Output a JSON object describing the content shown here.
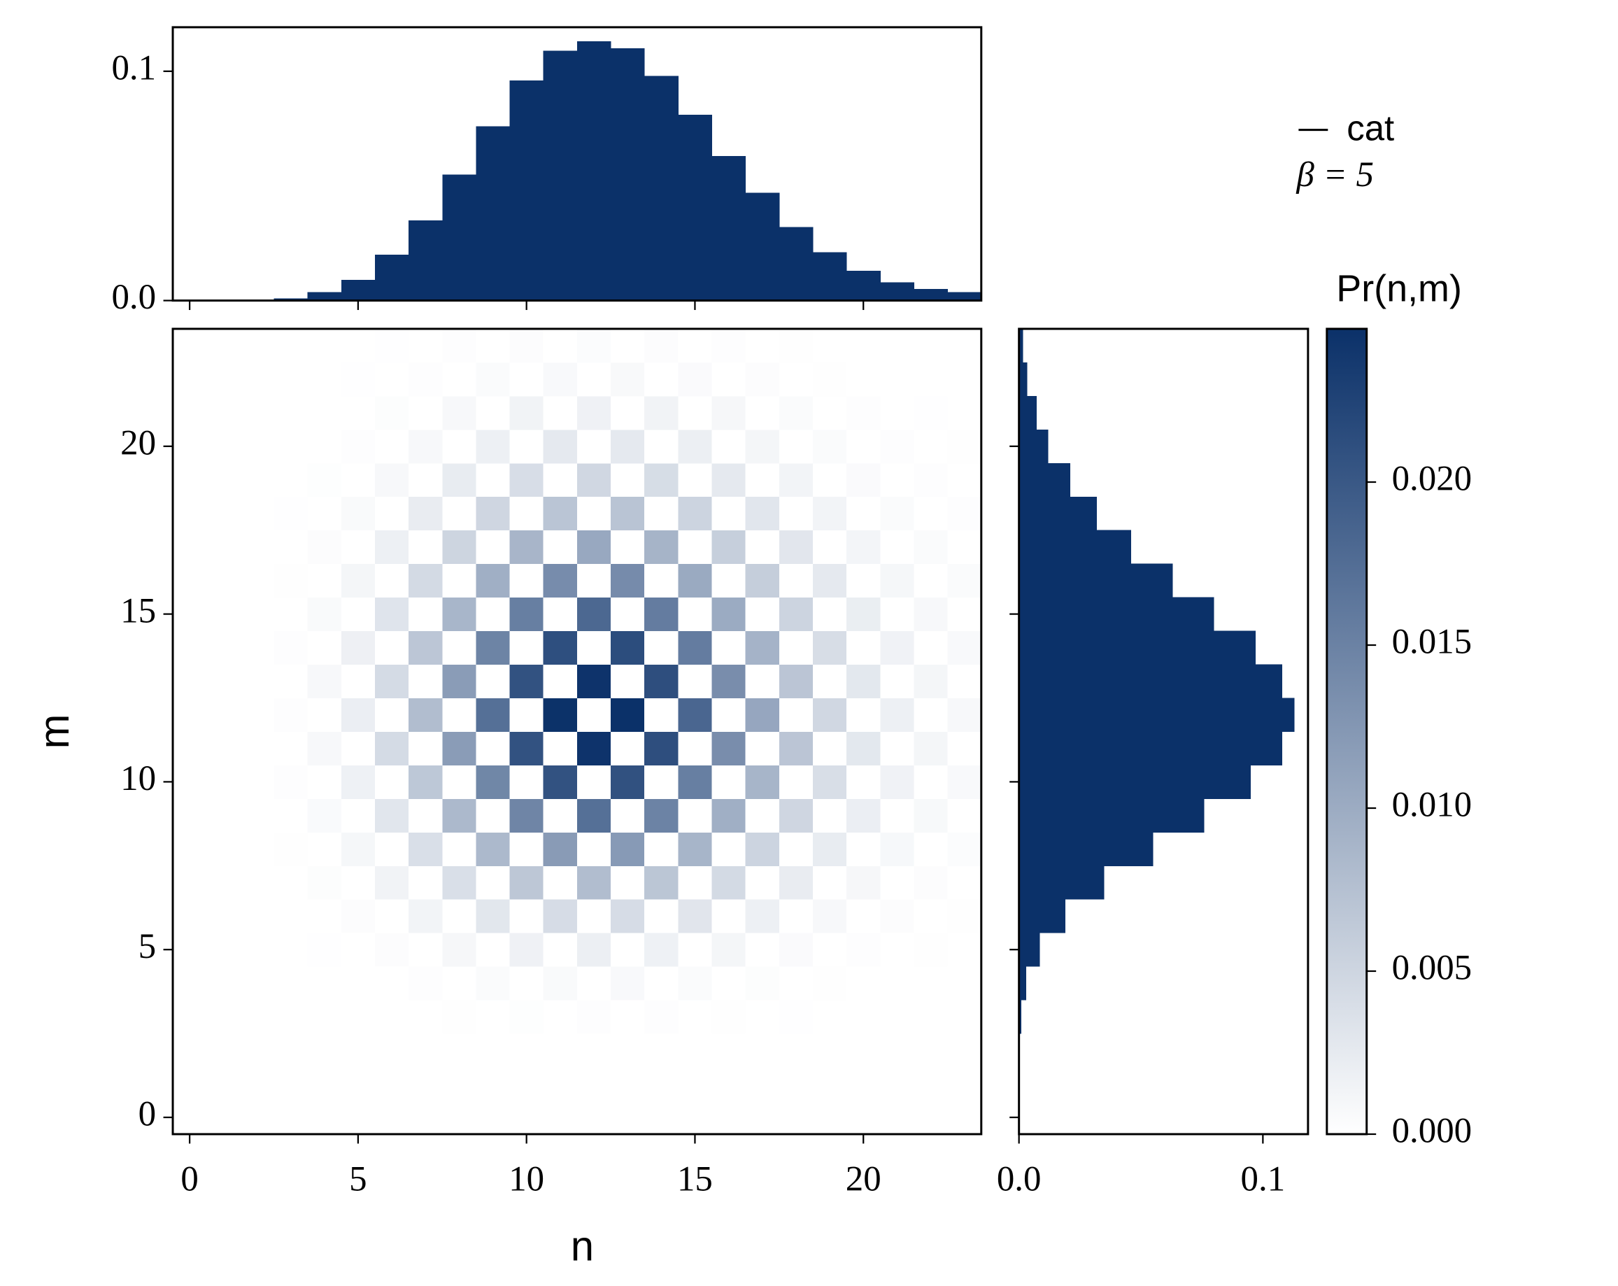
{
  "chart_data": [
    {
      "type": "heatmap",
      "x_label": "n",
      "y_label": "m",
      "x": [
        0,
        1,
        2,
        3,
        4,
        5,
        6,
        7,
        8,
        9,
        10,
        11,
        12,
        13,
        14,
        15,
        16,
        17,
        18,
        19,
        20,
        21,
        22,
        23
      ],
      "y": [
        0,
        1,
        2,
        3,
        4,
        5,
        6,
        7,
        8,
        9,
        10,
        11,
        12,
        13,
        14,
        15,
        16,
        17,
        18,
        19,
        20,
        21,
        22,
        23
      ],
      "z": [
        [
          0,
          0,
          0,
          0,
          0,
          0,
          0,
          0,
          0,
          0,
          0,
          0,
          0,
          0,
          0,
          0,
          0,
          0,
          0,
          0,
          0,
          0,
          0,
          0
        ],
        [
          0,
          0,
          0,
          0,
          0,
          0,
          0,
          0,
          0,
          0,
          0,
          0,
          0,
          0,
          0,
          0,
          0,
          0,
          0,
          0,
          0,
          0,
          0,
          0
        ],
        [
          0,
          0,
          0,
          0,
          0,
          0,
          0,
          0,
          0,
          0,
          0,
          0,
          0,
          0,
          0,
          0,
          0,
          0,
          0,
          0,
          0,
          0,
          0,
          0
        ],
        [
          0,
          0,
          0,
          0,
          1e-05,
          0,
          4e-05,
          0,
          0.0001,
          0,
          0.00017,
          0,
          0.0002,
          0,
          0.00018,
          0,
          0.00011,
          0,
          6e-05,
          0,
          2e-05,
          0,
          1e-05,
          0
        ],
        [
          0,
          0,
          0,
          1e-05,
          0,
          5e-05,
          0,
          0.00021,
          0,
          0.00046,
          0,
          0.00065,
          0,
          0.00066,
          0,
          0.00049,
          0,
          0.00028,
          0,
          0.00013,
          0,
          5e-05,
          0,
          2e-05
        ],
        [
          0,
          0,
          0,
          0,
          6e-05,
          0,
          0.00034,
          0,
          0.00095,
          0,
          0.00165,
          0,
          0.00194,
          0,
          0.00169,
          0,
          0.00108,
          0,
          0.00055,
          0,
          0.00022,
          0,
          9e-05,
          0
        ],
        [
          0,
          0,
          0,
          4e-05,
          0,
          0.00034,
          0,
          0.00133,
          0,
          0.00289,
          0,
          0.00414,
          0,
          0.00418,
          0,
          0.00308,
          0,
          0.00179,
          0,
          0.0008,
          0,
          0.0003,
          0,
          0.00014
        ],
        [
          0,
          0,
          0,
          0,
          0.00026,
          0,
          0.0014,
          0,
          0.00385,
          0,
          0.00672,
          0,
          0.00791,
          0,
          0.00686,
          0,
          0.00441,
          0,
          0.00224,
          0,
          0.00091,
          0,
          0.00035,
          0
        ],
        [
          0,
          0,
          0,
          0.00011,
          0,
          0.00099,
          0,
          0.00385,
          0,
          0.00836,
          0,
          0.01199,
          0,
          0.0121,
          0,
          0.00891,
          0,
          0.00517,
          0,
          0.00231,
          0,
          0.00088,
          0,
          0.00041
        ],
        [
          0,
          0,
          0,
          0,
          0.00056,
          0,
          0.00304,
          0,
          0.00836,
          0,
          0.01459,
          0,
          0.01718,
          0,
          0.0149,
          0,
          0.00958,
          0,
          0.00486,
          0,
          0.00198,
          0,
          0.00076,
          0
        ],
        [
          0,
          0,
          0,
          0.00019,
          0,
          0.00171,
          0,
          0.00665,
          0,
          0.01444,
          0,
          0.02071,
          0,
          0.0209,
          0,
          0.01539,
          0,
          0.00893,
          0,
          0.00399,
          0,
          0.00152,
          0,
          0.0007
        ],
        [
          0,
          0,
          0,
          0,
          0.0008,
          0,
          0.00432,
          0,
          0.01188,
          0,
          0.02074,
          0,
          0.02441,
          0,
          0.02117,
          0,
          0.01361,
          0,
          0.00691,
          0,
          0.00281,
          0,
          0.00108,
          0
        ],
        [
          0,
          0,
          0,
          0.00023,
          0,
          0.00203,
          0,
          0.00791,
          0,
          0.01718,
          0,
          0.02463,
          0,
          0.02486,
          0,
          0.01831,
          0,
          0.01062,
          0,
          0.00475,
          0,
          0.00181,
          0,
          0.00084
        ],
        [
          0,
          0,
          0,
          0,
          0.0008,
          0,
          0.00432,
          0,
          0.01188,
          0,
          0.02074,
          0,
          0.02441,
          0,
          0.02117,
          0,
          0.01361,
          0,
          0.00691,
          0,
          0.00281,
          0,
          0.00108,
          0
        ],
        [
          0,
          0,
          0,
          0.00019,
          0,
          0.00175,
          0,
          0.00679,
          0,
          0.01474,
          0,
          0.02115,
          0,
          0.02134,
          0,
          0.01571,
          0,
          0.00912,
          0,
          0.00407,
          0,
          0.00155,
          0,
          0.00072
        ],
        [
          0,
          0,
          0,
          0,
          0.00059,
          0,
          0.0032,
          0,
          0.0088,
          0,
          0.01536,
          0,
          0.01808,
          0,
          0.01568,
          0,
          0.01008,
          0,
          0.00512,
          0,
          0.00208,
          0,
          0.0008,
          0
        ],
        [
          0,
          0,
          0,
          0.00013,
          0,
          0.00113,
          0,
          0.00441,
          0,
          0.00958,
          0,
          0.01373,
          0,
          0.01386,
          0,
          0.01021,
          0,
          0.00592,
          0,
          0.00265,
          0,
          0.00101,
          0,
          0.00047
        ],
        [
          0,
          0,
          0,
          0,
          0.00034,
          0,
          0.00184,
          0,
          0.00506,
          0,
          0.00883,
          0,
          0.0104,
          0,
          0.00902,
          0,
          0.0058,
          0,
          0.00294,
          0,
          0.0012,
          0,
          0.00046,
          0
        ],
        [
          0,
          0,
          0,
          6e-05,
          0,
          0.00058,
          0,
          0.00224,
          0,
          0.00486,
          0,
          0.00698,
          0,
          0.00704,
          0,
          0.00518,
          0,
          0.00301,
          0,
          0.00134,
          0,
          0.00051,
          0,
          0.00024
        ],
        [
          0,
          0,
          0,
          0,
          0.00016,
          0,
          0.00084,
          0,
          0.00231,
          0,
          0.00403,
          0,
          0.00475,
          0,
          0.00412,
          0,
          0.00265,
          0,
          0.00134,
          0,
          0.00055,
          0,
          0.00021,
          0
        ],
        [
          0,
          0,
          0,
          2e-05,
          0,
          0.00022,
          0,
          0.00084,
          0,
          0.00182,
          0,
          0.00262,
          0,
          0.00264,
          0,
          0.00194,
          0,
          0.00113,
          0,
          0.0005,
          0,
          0.00019,
          0,
          9e-05
        ],
        [
          0,
          0,
          0,
          0,
          5e-05,
          0,
          0.00029,
          0,
          0.0008,
          0,
          0.0014,
          0,
          0.00165,
          0,
          0.00143,
          0,
          0.00092,
          0,
          0.00047,
          0,
          0.00019,
          0,
          7e-05,
          0
        ],
        [
          0,
          0,
          0,
          1e-05,
          0,
          6e-05,
          0,
          0.00024,
          0,
          0.00052,
          0,
          0.00074,
          0,
          0.00075,
          0,
          0.00055,
          0,
          0.00032,
          0,
          0.00014,
          0,
          5e-05,
          0,
          3e-05
        ],
        [
          0,
          0,
          0,
          0,
          1e-05,
          0,
          7e-05,
          0,
          0.00019,
          0,
          0.00033,
          0,
          0.00038,
          0,
          0.00033,
          0,
          0.00021,
          0,
          0.00011,
          0,
          4e-05,
          0,
          2e-05,
          0
        ]
      ],
      "xlim": [
        -0.5,
        23.5
      ],
      "ylim": [
        -0.5,
        23.5
      ],
      "xticks": [
        0,
        5,
        10,
        15,
        20
      ],
      "yticks": [
        0,
        5,
        10,
        15,
        20
      ],
      "colorbar_label": "Pr(n,m)",
      "zlim": [
        0,
        0.0247
      ],
      "zticks": [
        {
          "value": 0,
          "label": "0.000"
        },
        {
          "value": 0.005,
          "label": "0.005"
        },
        {
          "value": 0.01,
          "label": "0.010"
        },
        {
          "value": 0.015,
          "label": "0.015"
        },
        {
          "value": 0.02,
          "label": "0.020"
        }
      ],
      "colormap": [
        "#ffffff",
        "#0b3169"
      ],
      "legend_label": "cat",
      "annotation": "β = 5"
    },
    {
      "type": "bar",
      "x": [
        0,
        1,
        2,
        3,
        4,
        5,
        6,
        7,
        8,
        9,
        10,
        11,
        12,
        13,
        14,
        15,
        16,
        17,
        18,
        19,
        20,
        21,
        22,
        23
      ],
      "values": [
        0,
        0,
        0,
        0.001,
        0.0037,
        0.009,
        0.02,
        0.035,
        0.055,
        0.076,
        0.096,
        0.109,
        0.113,
        0.11,
        0.098,
        0.081,
        0.063,
        0.047,
        0.032,
        0.021,
        0.013,
        0.008,
        0.005,
        0.0037
      ],
      "color": "#0b3169",
      "xlim": [
        -0.5,
        23.5
      ],
      "ylim": [
        0,
        0.1192
      ],
      "xticks": [
        0,
        5,
        10,
        15,
        20
      ],
      "yticks": [
        {
          "value": 0,
          "label": "0.0"
        },
        0.1
      ]
    },
    {
      "type": "barh",
      "y": [
        0,
        1,
        2,
        3,
        4,
        5,
        6,
        7,
        8,
        9,
        10,
        11,
        12,
        13,
        14,
        15,
        16,
        17,
        18,
        19,
        20,
        21,
        22,
        23
      ],
      "values": [
        0,
        0,
        0,
        0.0009,
        0.003,
        0.0086,
        0.019,
        0.035,
        0.055,
        0.076,
        0.095,
        0.108,
        0.113,
        0.108,
        0.097,
        0.08,
        0.063,
        0.046,
        0.032,
        0.021,
        0.012,
        0.0073,
        0.0034,
        0.0017
      ],
      "color": "#0b3169",
      "ylim": [
        -0.5,
        23.5
      ],
      "xlim": [
        0,
        0.1185
      ],
      "yticks": [
        0,
        5,
        10,
        15,
        20
      ],
      "xticks": [
        {
          "value": 0,
          "label": "0.0"
        },
        0.1
      ]
    }
  ]
}
